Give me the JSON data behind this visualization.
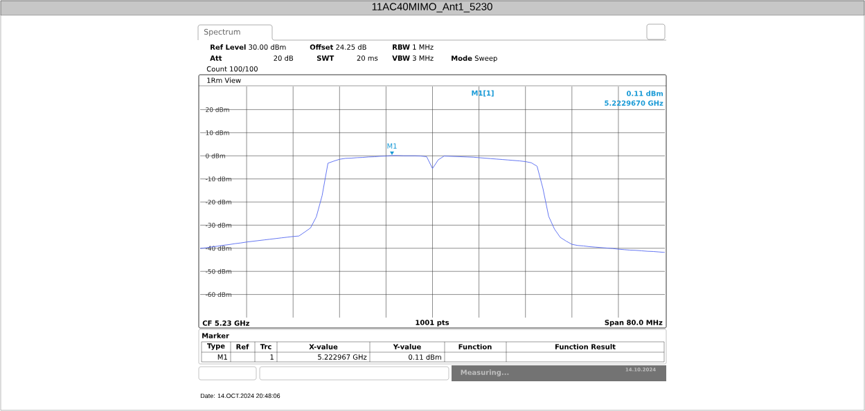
{
  "chart_data": {
    "type": "line",
    "title": "11AC40MIMO_Ant1_5230",
    "categories": [
      null,
      null,
      null,
      null,
      null,
      null,
      null,
      null,
      null,
      null,
      null,
      null,
      null,
      null,
      null,
      null,
      null,
      null,
      null,
      null,
      null,
      null,
      null,
      null,
      null,
      null,
      null,
      null,
      null,
      null,
      null,
      null,
      null,
      null,
      null,
      null,
      null,
      null,
      null,
      null,
      null,
      null,
      null,
      null,
      null,
      null,
      null,
      null,
      null,
      null,
      null,
      null,
      null,
      null,
      null,
      null,
      null,
      null,
      null,
      null,
      null,
      null,
      null,
      null,
      null,
      null,
      null,
      null,
      null,
      null,
      null,
      null,
      null,
      null,
      null,
      null,
      null,
      null,
      null,
      null,
      null
    ],
    "series": [
      {
        "color": "#5468f0",
        "values": [
          -40.1,
          -39.8,
          -39.4,
          -39.1,
          -38.7,
          -38.4,
          -38.0,
          -37.7,
          -37.3,
          -37.0,
          -36.7,
          -36.4,
          -36.1,
          -35.8,
          -35.5,
          -35.2,
          -34.9,
          -34.7,
          -33.0,
          -31.2,
          -26.4,
          -17.2,
          -3.2,
          -2.3,
          -1.5,
          -1.1,
          -1.0,
          -0.8,
          -0.7,
          -0.5,
          -0.4,
          -0.2,
          -0.1,
          0.1,
          0.1,
          0.0,
          0.0,
          0.0,
          -0.1,
          -0.4,
          -5.5,
          -1.7,
          -0.1,
          -0.2,
          -0.3,
          -0.4,
          -0.5,
          -0.6,
          -0.8,
          -1.0,
          -1.2,
          -1.4,
          -1.6,
          -1.8,
          -2.0,
          -2.2,
          -2.5,
          -3.0,
          -4.5,
          -14.0,
          -26.2,
          -31.7,
          -35.3,
          -36.9,
          -38.3,
          -38.8,
          -39.0,
          -39.3,
          -39.5,
          -39.7,
          -39.9,
          -40.1,
          -40.4,
          -40.6,
          -40.8,
          -40.9,
          -41.1,
          -41.3,
          -41.4,
          -41.6,
          -41.8
        ]
      }
    ],
    "ylim": [
      -70,
      30
    ],
    "yticks": [
      {
        "value": -60,
        "label": "-60 dBm"
      },
      {
        "value": -50,
        "label": "-50 dBm"
      },
      {
        "value": -40,
        "label": "-40 dBm"
      },
      {
        "value": -30,
        "label": "-30 dBm"
      },
      {
        "value": -20,
        "label": "-20 dBm"
      },
      {
        "value": -10,
        "label": "-10 dBm"
      },
      {
        "value": 0,
        "label": "0 dBm"
      },
      {
        "value": 10,
        "label": "10 dBm"
      },
      {
        "value": 20,
        "label": "20 dBm"
      }
    ],
    "grid": true,
    "marker": "none",
    "line_style": "solid",
    "tick_labels": "y",
    "annotations": [
      "Spectrum",
      "**Ref Level** 30.00 dBm",
      "**Offset** 24.25 dB",
      "**RBW** 1 MHz",
      "**Att**",
      "20 dB",
      "**SWT**",
      "20 ms",
      "**VBW** 3 MHz",
      "**Mode** Sweep",
      "Count 100/100",
      "1Rm View",
      "M1[1]",
      "0.11 dBm",
      "5.2229670 GHz",
      "CF 5.23 GHz",
      "1001 pts",
      "Span 80.0 MHz",
      "Marker",
      "Type",
      "Ref",
      "Trc",
      "X-value",
      "Y-value",
      "Function",
      "Function Result",
      "M1",
      "1",
      "5.222967 GHz",
      "0.11 dBm",
      "Measuring...",
      "14.10.2024",
      "Date: 14.OCT.2024  20:48:06",
      "M1"
    ]
  }
}
